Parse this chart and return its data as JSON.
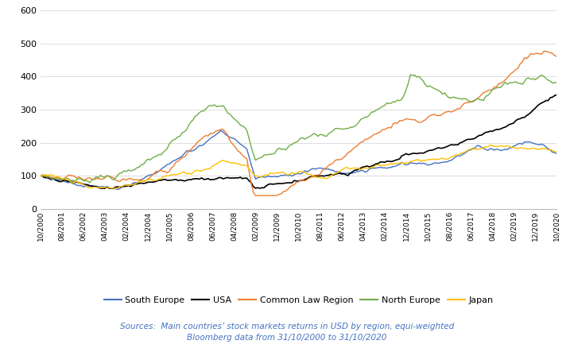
{
  "title": "",
  "source_line1": "Sources:  Main countries’ stock markets returns in USD by region, equi-weighted",
  "source_line2": "Bloomberg data from 31/10/2000 to 31/10/2020",
  "source_color": "#4472C4",
  "series_names": [
    "South Europe",
    "USA",
    "Common Law Region",
    "North Europe",
    "Japan"
  ],
  "series_colors": [
    "#4472C4",
    "#000000",
    "#ED7D31",
    "#70AD47",
    "#FFC000"
  ],
  "line_widths": [
    1.0,
    1.2,
    1.0,
    1.0,
    1.0
  ],
  "ylim": [
    0,
    600
  ],
  "yticks": [
    0,
    100,
    200,
    300,
    400,
    500,
    600
  ],
  "figsize": [
    7.22,
    4.38
  ],
  "dpi": 100,
  "tick_labels": [
    "10/2000",
    "08/2001",
    "06/2002",
    "04/2003",
    "02/2004",
    "12/2004",
    "10/2005",
    "08/2006",
    "06/2007",
    "04/2008",
    "02/2009",
    "12/2009",
    "10/2010",
    "08/2011",
    "06/2012",
    "04/2013",
    "02/2014",
    "12/2014",
    "10/2015",
    "08/2016",
    "06/2017",
    "04/2018",
    "02/2019",
    "12/2019",
    "10/2020"
  ]
}
